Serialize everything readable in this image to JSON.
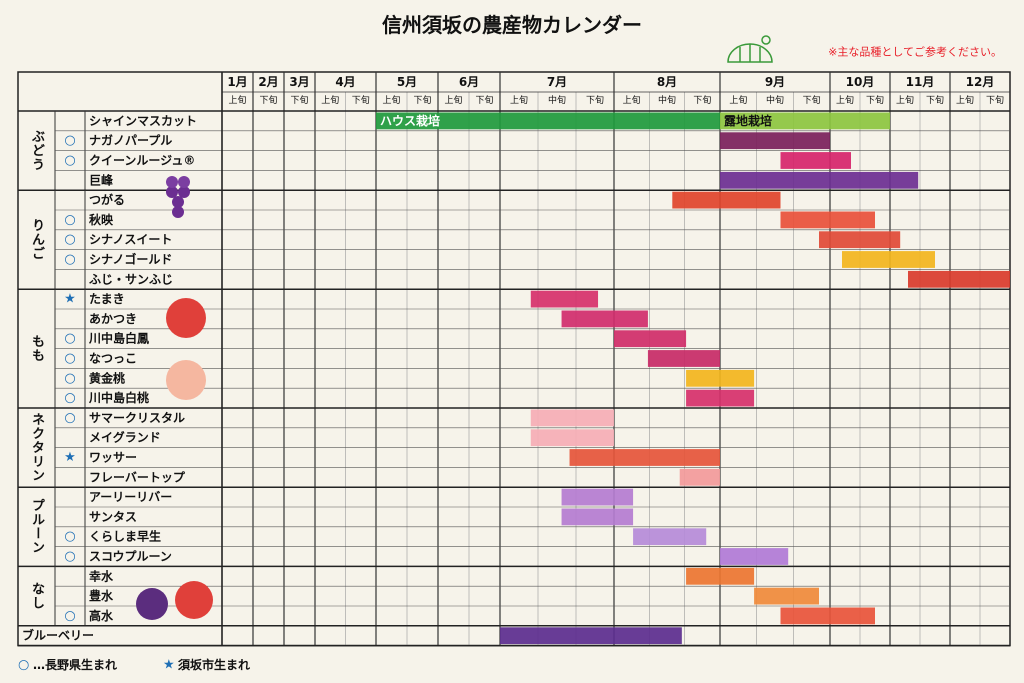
{
  "chart_data": {
    "type": "gantt",
    "title": "信州須坂の農産物カレンダー",
    "note": "※主な品種としてご参考ください。",
    "months": [
      {
        "label": "1月",
        "parts": [
          "上旬"
        ]
      },
      {
        "label": "2月",
        "parts": [
          "下旬"
        ]
      },
      {
        "label": "3月",
        "parts": [
          "下旬"
        ]
      },
      {
        "label": "4月",
        "parts": [
          "上旬",
          "下旬"
        ]
      },
      {
        "label": "5月",
        "parts": [
          "上旬",
          "下旬"
        ]
      },
      {
        "label": "6月",
        "parts": [
          "上旬",
          "下旬"
        ]
      },
      {
        "label": "7月",
        "parts": [
          "上旬",
          "中旬",
          "下旬"
        ]
      },
      {
        "label": "8月",
        "parts": [
          "上旬",
          "中旬",
          "下旬"
        ]
      },
      {
        "label": "9月",
        "parts": [
          "上旬",
          "中旬",
          "下旬"
        ]
      },
      {
        "label": "10月",
        "parts": [
          "上旬",
          "下旬"
        ]
      },
      {
        "label": "11月",
        "parts": [
          "上旬",
          "下旬"
        ]
      },
      {
        "label": "12月",
        "parts": [
          "上旬",
          "下旬"
        ]
      }
    ],
    "xlim": [
      1,
      13
    ],
    "groups": [
      {
        "name": "ぶどう",
        "items": [
          {
            "name": "シャインマスカット",
            "periods": [
              {
                "start": 5,
                "end": 9,
                "color": "#1e9a3c",
                "label": "ハウス栽培",
                "label_color": "#ffffff"
              },
              {
                "start": 9,
                "end": 11,
                "color": "#8cc63f",
                "label": "露地栽培",
                "label_color": "#111111"
              }
            ]
          },
          {
            "mark": "○",
            "name": "ナガノパープル",
            "periods": [
              {
                "start": 9,
                "end": 10,
                "color": "#7a1f5a"
              }
            ]
          },
          {
            "mark": "○",
            "name": "クイーンルージュ®",
            "periods": [
              {
                "start": 9.55,
                "end": 10.35,
                "color": "#d6246a"
              }
            ]
          },
          {
            "name": "巨峰",
            "periods": [
              {
                "start": 9,
                "end": 11.47,
                "color": "#6b2e91"
              }
            ]
          }
        ]
      },
      {
        "name": "りんご",
        "items": [
          {
            "name": "つがる",
            "periods": [
              {
                "start": 8.55,
                "end": 9.55,
                "color": "#e0442a"
              }
            ]
          },
          {
            "mark": "○",
            "name": "秋映",
            "periods": [
              {
                "start": 9.55,
                "end": 10.75,
                "color": "#e8503a"
              }
            ]
          },
          {
            "mark": "○",
            "name": "シナノスイート",
            "periods": [
              {
                "start": 9.9,
                "end": 11.17,
                "color": "#e04a36"
              }
            ]
          },
          {
            "mark": "○",
            "name": "シナノゴールド",
            "periods": [
              {
                "start": 10.2,
                "end": 11.75,
                "color": "#f2b51c"
              }
            ]
          },
          {
            "name": "ふじ・サンふじ",
            "periods": [
              {
                "start": 11.3,
                "end": 13,
                "color": "#d93b2b"
              }
            ]
          }
        ]
      },
      {
        "name": "もも",
        "items": [
          {
            "mark": "★",
            "name": "たまき",
            "periods": [
              {
                "start": 7.27,
                "end": 7.86,
                "color": "#d6306a"
              }
            ]
          },
          {
            "name": "あかつき",
            "periods": [
              {
                "start": 7.54,
                "end": 8.32,
                "color": "#d02d6b"
              }
            ]
          },
          {
            "mark": "○",
            "name": "川中島白鳳",
            "periods": [
              {
                "start": 8,
                "end": 8.68,
                "color": "#cf2d68"
              }
            ]
          },
          {
            "mark": "○",
            "name": "なつっこ",
            "periods": [
              {
                "start": 8.32,
                "end": 9,
                "color": "#c72a66"
              }
            ]
          },
          {
            "mark": "○",
            "name": "黄金桃",
            "periods": [
              {
                "start": 8.68,
                "end": 9.31,
                "color": "#f2b51c"
              }
            ]
          },
          {
            "mark": "○",
            "name": "川中島白桃",
            "periods": [
              {
                "start": 8.68,
                "end": 9.31,
                "color": "#d6306a"
              }
            ]
          }
        ]
      },
      {
        "name": "ネクタリン",
        "items": [
          {
            "mark": "○",
            "name": "サマークリスタル",
            "periods": [
              {
                "start": 7.27,
                "end": 8,
                "color": "#f5aeb5"
              }
            ]
          },
          {
            "name": "メイグランド",
            "periods": [
              {
                "start": 7.27,
                "end": 8,
                "color": "#f5aeb5"
              }
            ]
          },
          {
            "mark": "★",
            "name": "ワッサー",
            "periods": [
              {
                "start": 7.61,
                "end": 9,
                "color": "#e5553a"
              }
            ]
          },
          {
            "name": "フレーバートップ",
            "periods": [
              {
                "start": 8.62,
                "end": 9,
                "color": "#f29a9a"
              }
            ]
          }
        ]
      },
      {
        "name": "プルーン",
        "items": [
          {
            "name": "アーリーリバー",
            "periods": [
              {
                "start": 7.54,
                "end": 8.18,
                "color": "#b47cd0"
              }
            ]
          },
          {
            "name": "サンタス",
            "periods": [
              {
                "start": 7.54,
                "end": 8.18,
                "color": "#b47cd0"
              }
            ]
          },
          {
            "mark": "○",
            "name": "くらしま早生",
            "periods": [
              {
                "start": 8.18,
                "end": 8.87,
                "color": "#b58bd8"
              }
            ]
          },
          {
            "mark": "○",
            "name": "スコウプルーン",
            "periods": [
              {
                "start": 9,
                "end": 9.62,
                "color": "#b07ad6"
              }
            ]
          }
        ]
      },
      {
        "name": "なし",
        "items": [
          {
            "name": "幸水",
            "periods": [
              {
                "start": 8.68,
                "end": 9.31,
                "color": "#ec7530"
              }
            ]
          },
          {
            "name": "豊水",
            "periods": [
              {
                "start": 9.31,
                "end": 9.9,
                "color": "#ef8a3a"
              }
            ]
          },
          {
            "mark": "○",
            "name": "高水",
            "periods": [
              {
                "start": 9.55,
                "end": 10.75,
                "color": "#e8543a"
              }
            ]
          }
        ]
      },
      {
        "name": "ブルーベリー",
        "periods": [
          {
            "start": 7,
            "end": 8.64,
            "color": "#5b2d8e"
          }
        ]
      }
    ],
    "legend": [
      {
        "symbol": "○",
        "text": "…長野県生まれ"
      },
      {
        "symbol": "★",
        "text": "須坂市生まれ"
      }
    ]
  }
}
